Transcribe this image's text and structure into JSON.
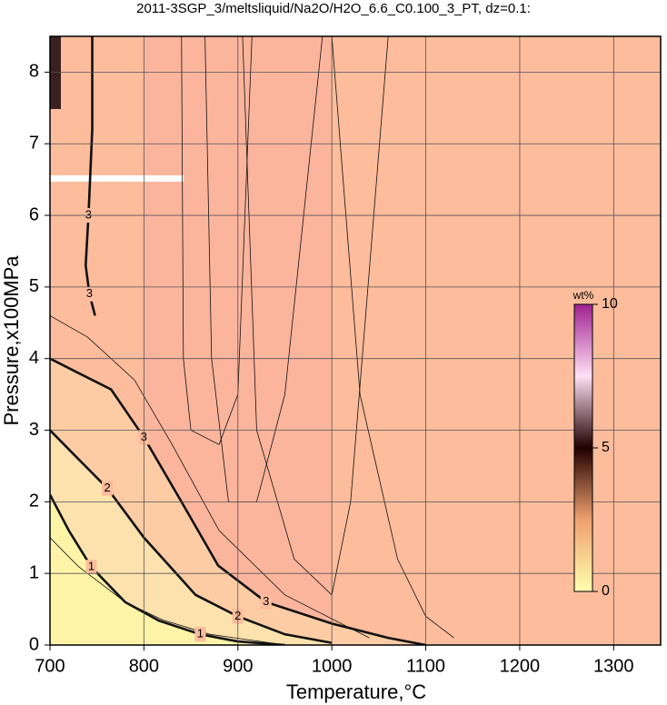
{
  "chart_data": {
    "type": "contour",
    "title": "2011-3SGP_3/meltsliquid/Na2O/H2O_6.6_C0.100_3_PT, dz=0.1:",
    "xlabel": "Temperature,°C",
    "ylabel": "Pressure,x100MPa",
    "xlim": [
      700,
      1350
    ],
    "ylim": [
      0,
      8.5
    ],
    "xticks": [
      700,
      800,
      900,
      1000,
      1100,
      1200,
      1300
    ],
    "yticks": [
      0,
      1,
      2,
      3,
      4,
      5,
      6,
      7,
      8
    ],
    "grid": true,
    "background": "#fdbc9c",
    "contours": [
      {
        "level": 3,
        "fill": "#fdcca4",
        "x": [
          700,
          730,
          765,
          800,
          840,
          879,
          930,
          1000,
          1060,
          1100
        ],
        "y": [
          4.0,
          3.8,
          3.57,
          2.9,
          2.0,
          1.11,
          0.6,
          0.3,
          0.1,
          0
        ]
      },
      {
        "level": 2,
        "fill": "#fde2ae",
        "x": [
          700,
          730,
          761,
          800,
          855,
          900,
          950,
          1000
        ],
        "y": [
          3.0,
          2.6,
          2.19,
          1.5,
          0.7,
          0.4,
          0.15,
          0.03
        ]
      },
      {
        "level": 1,
        "fill": "#fef4a8",
        "x": [
          700,
          720,
          744,
          780,
          816,
          860,
          900,
          950
        ],
        "y": [
          2.1,
          1.6,
          1.09,
          0.6,
          0.34,
          0.15,
          0.05,
          0
        ]
      },
      {
        "level": 3,
        "x": [
          745,
          745,
          741,
          738,
          742,
          748
        ],
        "y": [
          8.5,
          7.2,
          6.0,
          5.3,
          4.9,
          4.6
        ]
      }
    ],
    "thin_contours": [
      {
        "x": [
          840,
          842,
          850,
          880,
          900,
          915
        ],
        "y": [
          8.5,
          4.0,
          3.0,
          2.8,
          3.5,
          8.5
        ]
      },
      {
        "x": [
          865,
          872,
          890,
          920,
          950,
          990
        ],
        "y": [
          8.5,
          4.0,
          2.0,
          2.0,
          3.5,
          8.5
        ]
      },
      {
        "x": [
          905,
          920,
          960,
          1000,
          1020,
          1060
        ],
        "y": [
          8.5,
          3.0,
          1.2,
          0.7,
          2.0,
          8.5
        ]
      },
      {
        "x": [
          1000,
          1030,
          1070,
          1100,
          1120,
          1130
        ],
        "y": [
          8.5,
          3.5,
          1.2,
          0.4,
          0.2,
          0.1
        ]
      },
      {
        "x": [
          700,
          740,
          790,
          830,
          880,
          950,
          1040
        ],
        "y": [
          4.6,
          4.3,
          3.7,
          2.8,
          1.6,
          0.7,
          0.1
        ]
      },
      {
        "x": [
          700,
          730,
          780,
          820,
          870,
          940
        ],
        "y": [
          1.5,
          1.1,
          0.6,
          0.35,
          0.15,
          0.02
        ]
      }
    ],
    "colorbar": {
      "label": "wt%",
      "lim": [
        0,
        10
      ],
      "ticks": [
        0,
        5,
        10
      ],
      "colors": [
        "#ffffb0",
        "#f0a070",
        "#200000",
        "#ffe0f4",
        "#a02090"
      ]
    }
  }
}
